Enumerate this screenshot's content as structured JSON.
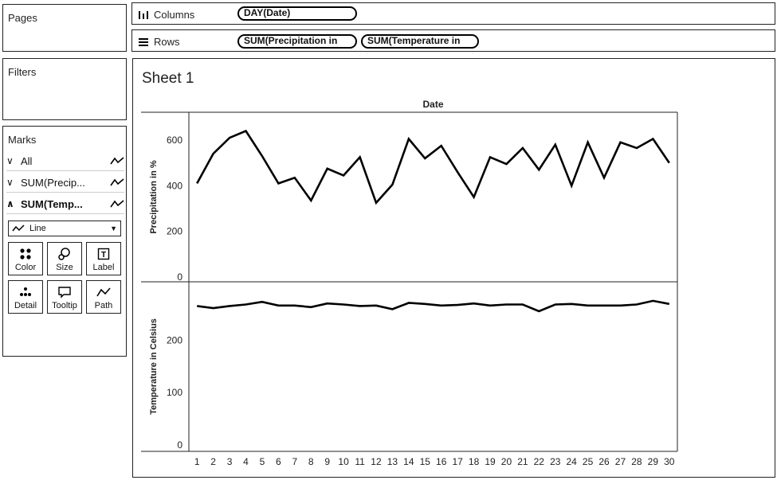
{
  "pages_card": {
    "title": "Pages"
  },
  "filters_card": {
    "title": "Filters"
  },
  "marks_card": {
    "title": "Marks",
    "rows": [
      {
        "chevron": "∨",
        "label": "All",
        "bold": false
      },
      {
        "chevron": "∨",
        "label": "SUM(Precip...",
        "bold": false
      },
      {
        "chevron": "∧",
        "label": "SUM(Temp...",
        "bold": true
      }
    ],
    "mark_type": "Line",
    "buttons": {
      "color": "Color",
      "size": "Size",
      "label": "Label",
      "detail": "Detail",
      "tooltip": "Tooltip",
      "path": "Path"
    }
  },
  "columns_shelf": {
    "label": "Columns",
    "pills": [
      "DAY(Date)"
    ]
  },
  "rows_shelf": {
    "label": "Rows",
    "pills": [
      "SUM(Precipitation in",
      "SUM(Temperature in"
    ]
  },
  "sheet": {
    "title": "Sheet 1"
  },
  "chart_data": {
    "type": "line",
    "header": "Date",
    "x": [
      1,
      2,
      3,
      4,
      5,
      6,
      7,
      8,
      9,
      10,
      11,
      12,
      13,
      14,
      15,
      16,
      17,
      18,
      19,
      20,
      21,
      22,
      23,
      24,
      25,
      26,
      27,
      28,
      29,
      30
    ],
    "x_tick_labels": [
      "1",
      "2",
      "3",
      "4",
      "5",
      "6",
      "7",
      "8",
      "9",
      "10",
      "11",
      "12",
      "13",
      "14",
      "15",
      "16",
      "17",
      "18",
      "19",
      "20",
      "21",
      "22",
      "23",
      "24",
      "25",
      "26",
      "27",
      "28",
      "29",
      "30"
    ],
    "panes": [
      {
        "ylabel": "Precipitation in %",
        "ylim": [
          0,
          680
        ],
        "yticks": [
          0,
          200,
          400,
          600
        ],
        "ytick_labels": [
          "0",
          "200",
          "400",
          "600"
        ],
        "values": [
          410,
          540,
          610,
          640,
          530,
          410,
          435,
          335,
          475,
          445,
          525,
          325,
          405,
          605,
          520,
          575,
          460,
          350,
          525,
          495,
          565,
          470,
          580,
          400,
          590,
          435,
          590,
          565,
          605,
          500
        ]
      },
      {
        "ylabel": "Temperature in Celsius",
        "ylim": [
          0,
          293
        ],
        "yticks": [
          0,
          100,
          200
        ],
        "ytick_labels": [
          "0",
          "100",
          "200"
        ],
        "values": [
          265,
          261,
          265,
          268,
          273,
          266,
          266,
          263,
          270,
          268,
          265,
          266,
          259,
          271,
          269,
          266,
          267,
          270,
          266,
          268,
          268,
          255,
          268,
          269,
          266,
          266,
          266,
          268,
          275,
          269
        ]
      }
    ],
    "color": "#000000",
    "grid": false
  }
}
